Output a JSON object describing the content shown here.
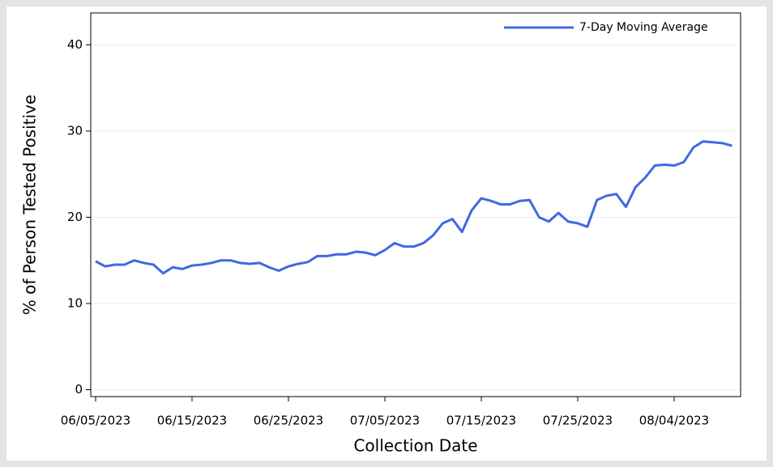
{
  "chart_data": {
    "type": "line",
    "x_label": "Collection Date",
    "y_label": "% of Person Tested Positive",
    "x": [
      "06/05/2023",
      "06/06/2023",
      "06/07/2023",
      "06/08/2023",
      "06/09/2023",
      "06/10/2023",
      "06/11/2023",
      "06/12/2023",
      "06/13/2023",
      "06/14/2023",
      "06/15/2023",
      "06/16/2023",
      "06/17/2023",
      "06/18/2023",
      "06/19/2023",
      "06/20/2023",
      "06/21/2023",
      "06/22/2023",
      "06/23/2023",
      "06/24/2023",
      "06/25/2023",
      "06/26/2023",
      "06/27/2023",
      "06/28/2023",
      "06/29/2023",
      "06/30/2023",
      "07/01/2023",
      "07/02/2023",
      "07/03/2023",
      "07/04/2023",
      "07/05/2023",
      "07/06/2023",
      "07/07/2023",
      "07/08/2023",
      "07/09/2023",
      "07/10/2023",
      "07/11/2023",
      "07/12/2023",
      "07/13/2023",
      "07/14/2023",
      "07/15/2023",
      "07/16/2023",
      "07/17/2023",
      "07/18/2023",
      "07/19/2023",
      "07/20/2023",
      "07/21/2023",
      "07/22/2023",
      "07/23/2023",
      "07/24/2023",
      "07/25/2023",
      "07/26/2023",
      "07/27/2023",
      "07/28/2023",
      "07/29/2023",
      "07/30/2023",
      "07/31/2023",
      "08/01/2023",
      "08/02/2023",
      "08/03/2023",
      "08/04/2023",
      "08/05/2023",
      "08/06/2023",
      "08/07/2023",
      "08/08/2023",
      "08/09/2023",
      "08/10/2023"
    ],
    "series": [
      {
        "name": "7-Day Moving Average",
        "color": "#4169e1",
        "values": [
          14.9,
          14.3,
          14.5,
          14.5,
          15.0,
          14.7,
          14.5,
          13.5,
          14.2,
          14.0,
          14.4,
          14.5,
          14.7,
          15.0,
          15.0,
          14.7,
          14.6,
          14.7,
          14.2,
          13.8,
          14.3,
          14.6,
          14.8,
          15.5,
          15.5,
          15.7,
          15.7,
          16.0,
          15.9,
          15.6,
          16.2,
          17.0,
          16.6,
          16.6,
          17.0,
          17.9,
          19.3,
          19.8,
          18.3,
          20.8,
          22.2,
          21.9,
          21.5,
          21.5,
          21.9,
          22.0,
          20.0,
          19.5,
          20.5,
          19.5,
          19.3,
          18.9,
          22.0,
          22.5,
          22.7,
          21.2,
          23.5,
          24.6,
          26.0,
          26.1,
          26.0,
          26.4,
          28.1,
          28.8,
          28.7,
          28.6,
          28.3
        ]
      }
    ],
    "xticks": [
      "06/05/2023",
      "06/15/2023",
      "06/25/2023",
      "07/05/2023",
      "07/15/2023",
      "07/25/2023",
      "08/04/2023"
    ],
    "ylim": [
      -0.8,
      43.7
    ],
    "yticks": [
      0,
      10,
      20,
      30,
      40
    ],
    "grid": true,
    "legend": "top-right"
  }
}
